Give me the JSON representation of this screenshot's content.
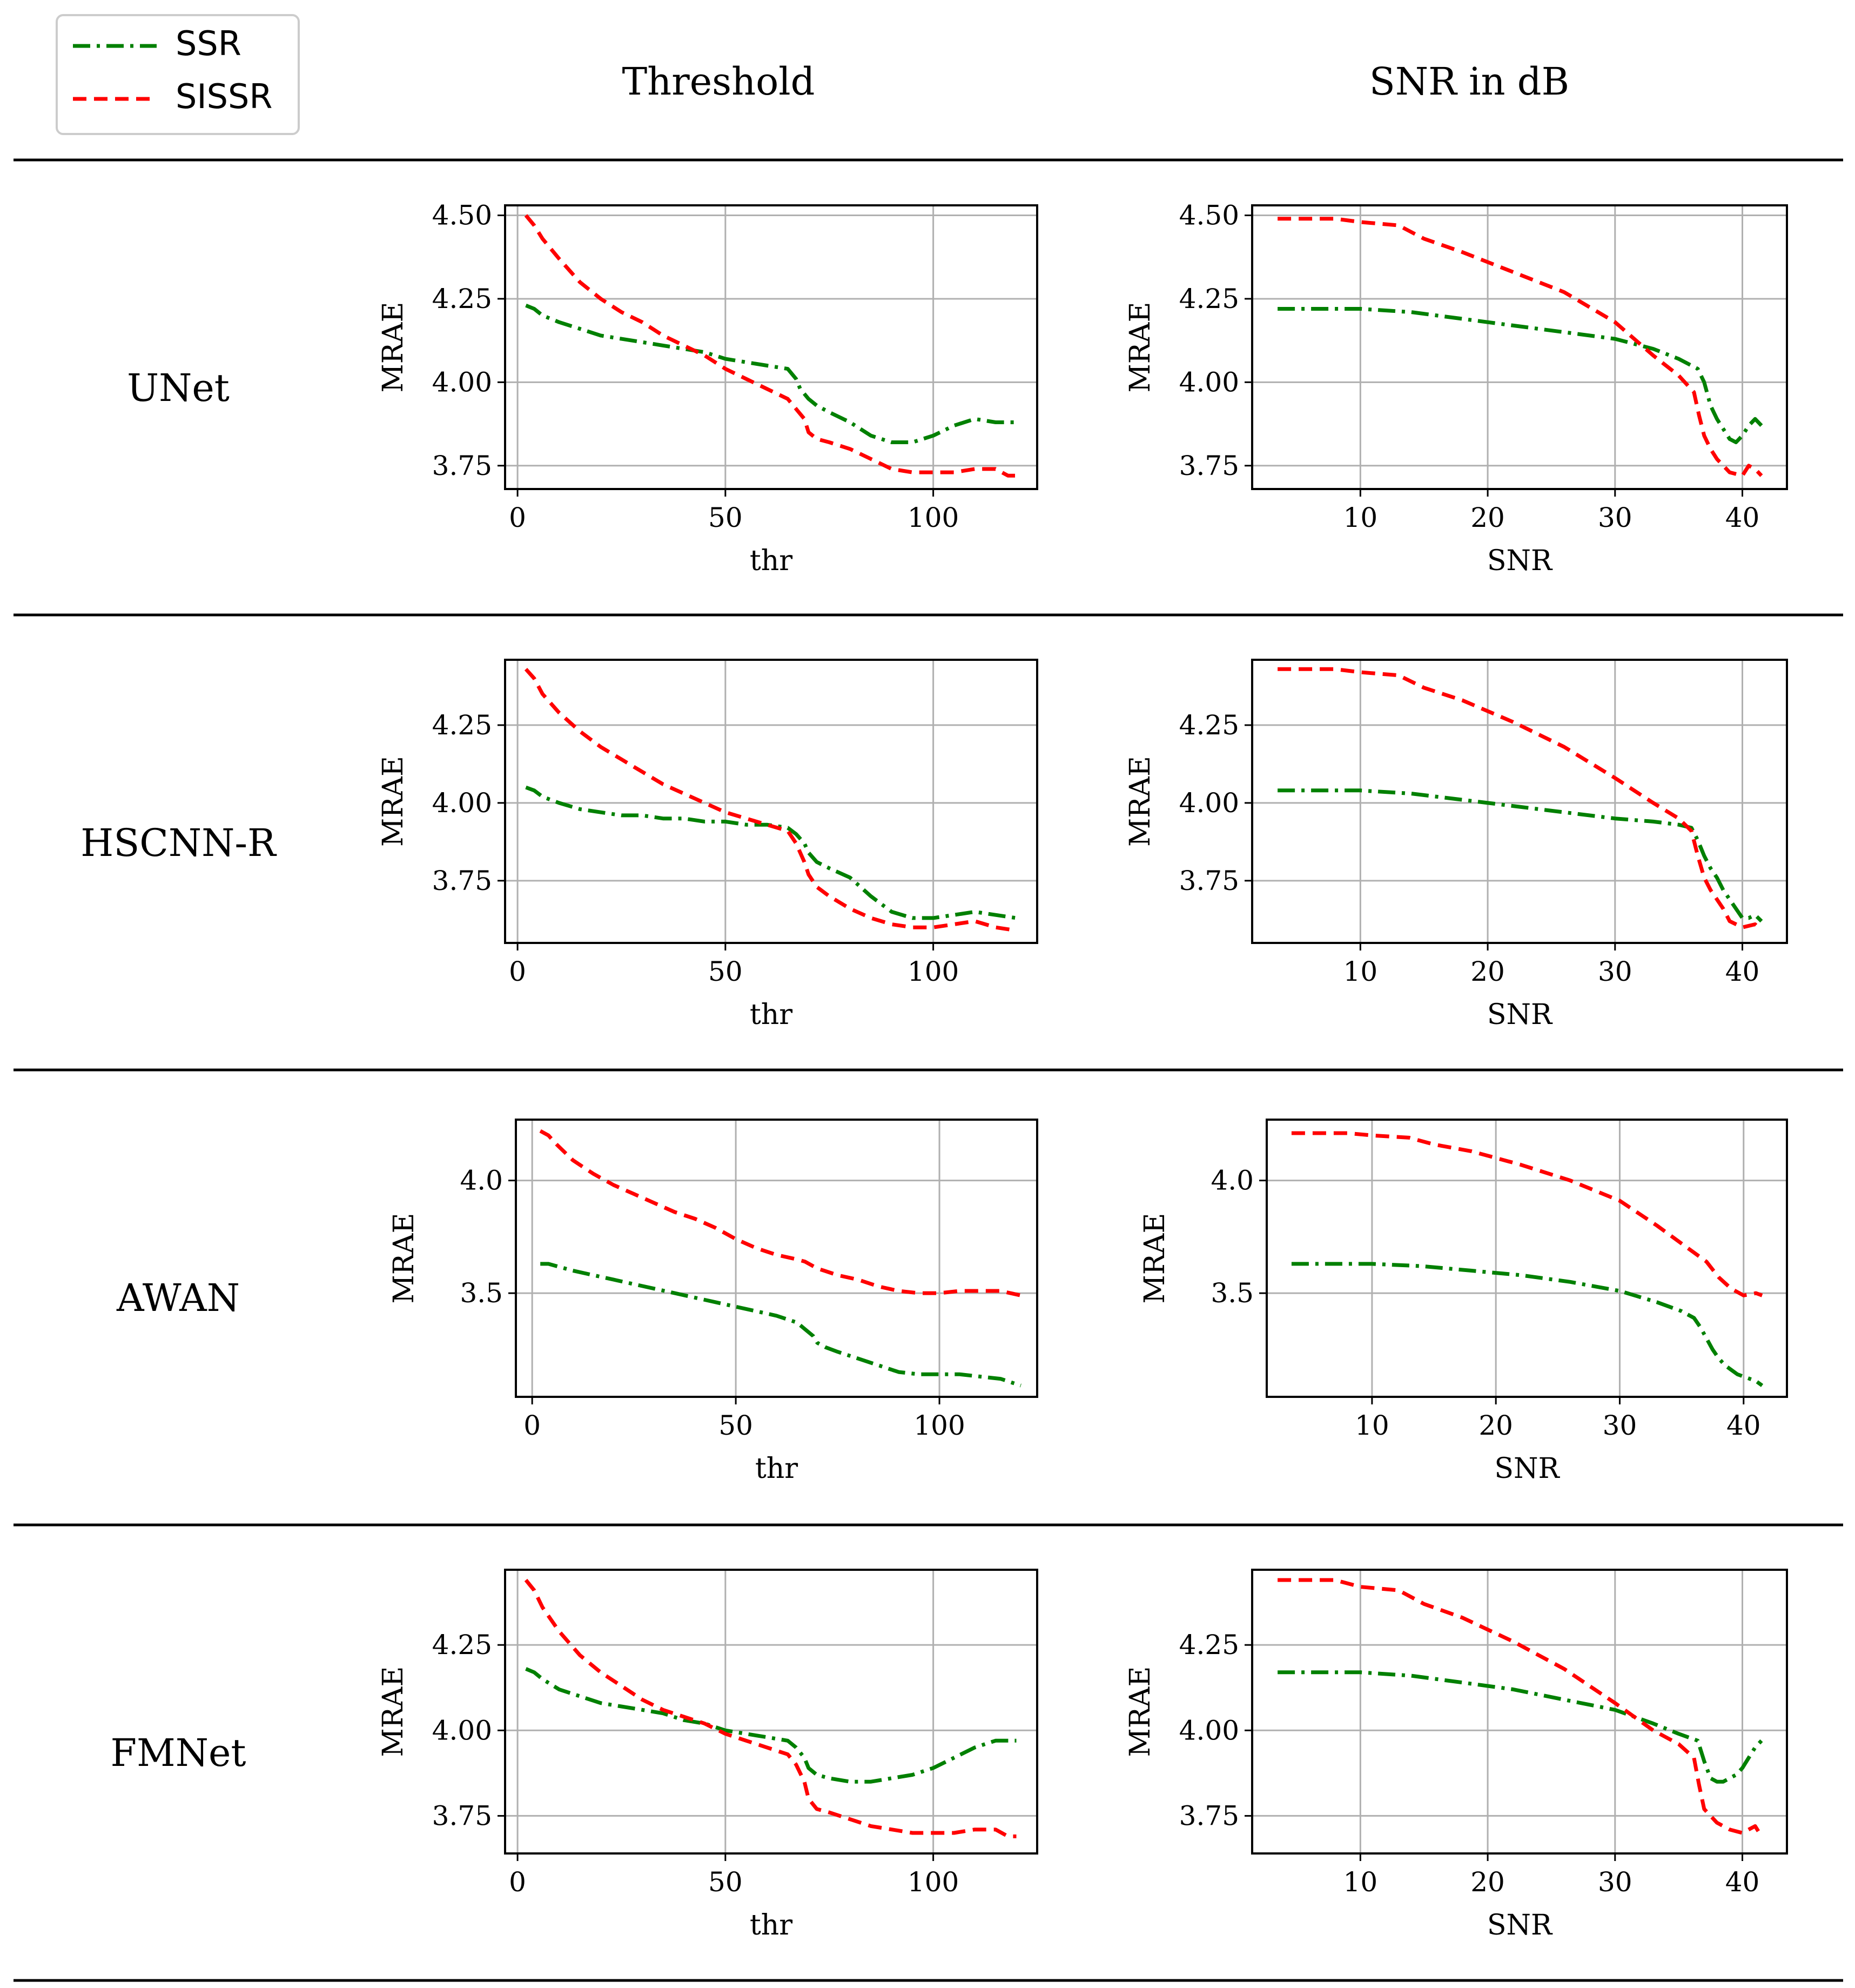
{
  "legend": [
    {
      "name": "SSR",
      "color": "#008000",
      "dash": "dashdot"
    },
    {
      "name": "SISSR",
      "color": "#ff0000",
      "dash": "dashed"
    }
  ],
  "columns": [
    "Threshold",
    "SNR in dB"
  ],
  "rows": [
    "UNet",
    "HSCNN-R",
    "AWAN",
    "FMNet"
  ],
  "chart_data": [
    {
      "id": "unet-thr",
      "type": "line",
      "row": "UNet",
      "column": "Threshold",
      "xlabel": "thr",
      "ylabel": "MRAE",
      "xlim": [
        -3,
        125
      ],
      "ylim": [
        3.68,
        4.53
      ],
      "xticks": [
        0,
        50,
        100
      ],
      "yticks": [
        3.75,
        4.0,
        4.25,
        4.5
      ],
      "ytick_decimals": 2,
      "grid": true,
      "series": [
        {
          "name": "SSR",
          "x": [
            2,
            4,
            6,
            10,
            15,
            20,
            25,
            30,
            35,
            40,
            45,
            50,
            55,
            60,
            65,
            67,
            68,
            70,
            72,
            75,
            80,
            85,
            90,
            95,
            100,
            105,
            110,
            115,
            120
          ],
          "y": [
            4.23,
            4.22,
            4.2,
            4.18,
            4.16,
            4.14,
            4.13,
            4.12,
            4.11,
            4.1,
            4.09,
            4.07,
            4.06,
            4.05,
            4.04,
            4.01,
            3.98,
            3.95,
            3.93,
            3.91,
            3.88,
            3.84,
            3.82,
            3.82,
            3.84,
            3.87,
            3.89,
            3.88,
            3.88
          ]
        },
        {
          "name": "SISSR",
          "x": [
            2,
            4,
            6,
            10,
            15,
            20,
            25,
            30,
            35,
            40,
            45,
            50,
            55,
            60,
            65,
            67,
            69,
            70,
            72,
            75,
            80,
            85,
            90,
            95,
            100,
            105,
            110,
            115,
            118,
            120
          ],
          "y": [
            4.5,
            4.47,
            4.43,
            4.37,
            4.3,
            4.25,
            4.21,
            4.18,
            4.14,
            4.11,
            4.08,
            4.04,
            4.01,
            3.98,
            3.95,
            3.92,
            3.89,
            3.85,
            3.83,
            3.82,
            3.8,
            3.77,
            3.74,
            3.73,
            3.73,
            3.73,
            3.74,
            3.74,
            3.72,
            3.72
          ]
        }
      ]
    },
    {
      "id": "unet-snr",
      "type": "line",
      "row": "UNet",
      "column": "SNR in dB",
      "xlabel": "SNR",
      "ylabel": "MRAE",
      "xlim": [
        1.5,
        43.5
      ],
      "ylim": [
        3.68,
        4.53
      ],
      "xticks": [
        10,
        20,
        30,
        40
      ],
      "yticks": [
        3.75,
        4.0,
        4.25,
        4.5
      ],
      "ytick_decimals": 2,
      "grid": true,
      "series": [
        {
          "name": "SSR",
          "x": [
            3.5,
            6,
            10,
            14,
            18,
            22,
            26,
            30,
            33,
            35,
            36.5,
            37,
            37.5,
            38,
            38.5,
            39,
            39.5,
            40,
            40.5,
            41,
            41.5
          ],
          "y": [
            4.22,
            4.22,
            4.22,
            4.21,
            4.19,
            4.17,
            4.15,
            4.13,
            4.1,
            4.07,
            4.04,
            4.0,
            3.93,
            3.89,
            3.86,
            3.83,
            3.82,
            3.84,
            3.87,
            3.89,
            3.87
          ]
        },
        {
          "name": "SISSR",
          "x": [
            3.5,
            5,
            8,
            10,
            13,
            15,
            18,
            22,
            26,
            30,
            33,
            35,
            36.2,
            36.6,
            37,
            37.5,
            38,
            39,
            40,
            40.5,
            41,
            41.5
          ],
          "y": [
            4.49,
            4.49,
            4.49,
            4.48,
            4.47,
            4.43,
            4.39,
            4.33,
            4.27,
            4.18,
            4.08,
            4.02,
            3.97,
            3.9,
            3.84,
            3.8,
            3.77,
            3.73,
            3.72,
            3.75,
            3.74,
            3.72
          ]
        }
      ]
    },
    {
      "id": "hscnn-thr",
      "type": "line",
      "row": "HSCNN-R",
      "column": "Threshold",
      "xlabel": "thr",
      "ylabel": "MRAE",
      "xlim": [
        -3,
        125
      ],
      "ylim": [
        3.55,
        4.46
      ],
      "xticks": [
        0,
        50,
        100
      ],
      "yticks": [
        3.75,
        4.0,
        4.25
      ],
      "ytick_decimals": 2,
      "grid": true,
      "series": [
        {
          "name": "SSR",
          "x": [
            2,
            4,
            6,
            10,
            15,
            20,
            25,
            30,
            35,
            40,
            45,
            50,
            55,
            60,
            65,
            67,
            69,
            70,
            72,
            75,
            80,
            85,
            90,
            95,
            100,
            105,
            110,
            115,
            120
          ],
          "y": [
            4.05,
            4.04,
            4.02,
            4.0,
            3.98,
            3.97,
            3.96,
            3.96,
            3.95,
            3.95,
            3.94,
            3.94,
            3.93,
            3.93,
            3.92,
            3.9,
            3.87,
            3.84,
            3.81,
            3.79,
            3.76,
            3.7,
            3.65,
            3.63,
            3.63,
            3.64,
            3.65,
            3.64,
            3.63
          ]
        },
        {
          "name": "SISSR",
          "x": [
            2,
            4,
            6,
            10,
            15,
            20,
            25,
            30,
            35,
            40,
            45,
            50,
            55,
            60,
            65,
            67,
            69,
            70,
            72,
            75,
            80,
            85,
            90,
            95,
            100,
            105,
            110,
            115,
            120
          ],
          "y": [
            4.43,
            4.4,
            4.35,
            4.29,
            4.23,
            4.18,
            4.14,
            4.1,
            4.06,
            4.03,
            4.0,
            3.97,
            3.95,
            3.93,
            3.91,
            3.87,
            3.81,
            3.77,
            3.73,
            3.7,
            3.66,
            3.63,
            3.61,
            3.6,
            3.6,
            3.61,
            3.62,
            3.6,
            3.59
          ]
        }
      ]
    },
    {
      "id": "hscnn-snr",
      "type": "line",
      "row": "HSCNN-R",
      "column": "SNR in dB",
      "xlabel": "SNR",
      "ylabel": "MRAE",
      "xlim": [
        1.5,
        43.5
      ],
      "ylim": [
        3.55,
        4.46
      ],
      "xticks": [
        10,
        20,
        30,
        40
      ],
      "yticks": [
        3.75,
        4.0,
        4.25
      ],
      "ytick_decimals": 2,
      "grid": true,
      "series": [
        {
          "name": "SSR",
          "x": [
            3.5,
            6,
            10,
            14,
            18,
            22,
            26,
            30,
            33,
            35,
            36,
            36.5,
            37,
            37.5,
            38,
            38.5,
            39,
            39.5,
            40,
            40.5,
            41,
            41.5
          ],
          "y": [
            4.04,
            4.04,
            4.04,
            4.03,
            4.01,
            3.99,
            3.97,
            3.95,
            3.94,
            3.93,
            3.92,
            3.88,
            3.83,
            3.79,
            3.76,
            3.72,
            3.69,
            3.66,
            3.63,
            3.63,
            3.64,
            3.62
          ]
        },
        {
          "name": "SISSR",
          "x": [
            3.5,
            5,
            8,
            10,
            13,
            15,
            18,
            22,
            26,
            30,
            33,
            35,
            36,
            36.5,
            37,
            37.5,
            38,
            38.5,
            39,
            40,
            41,
            41.5
          ],
          "y": [
            4.43,
            4.43,
            4.43,
            4.42,
            4.41,
            4.37,
            4.33,
            4.26,
            4.18,
            4.08,
            4.0,
            3.95,
            3.91,
            3.83,
            3.76,
            3.72,
            3.69,
            3.66,
            3.62,
            3.6,
            3.61,
            3.59
          ]
        }
      ]
    },
    {
      "id": "awan-thr",
      "type": "line",
      "row": "AWAN",
      "column": "Threshold",
      "xlabel": "thr",
      "ylabel": "MRAE",
      "xlim": [
        -4,
        124
      ],
      "ylim": [
        3.04,
        4.27
      ],
      "xticks": [
        0,
        50,
        100
      ],
      "yticks": [
        3.5,
        4.0
      ],
      "ytick_decimals": 1,
      "grid": true,
      "series": [
        {
          "name": "SSR",
          "x": [
            2,
            4,
            6,
            10,
            15,
            20,
            25,
            30,
            35,
            40,
            45,
            50,
            55,
            60,
            65,
            67,
            69,
            70,
            72,
            75,
            80,
            85,
            90,
            95,
            100,
            105,
            110,
            115,
            120
          ],
          "y": [
            3.63,
            3.63,
            3.62,
            3.6,
            3.58,
            3.56,
            3.54,
            3.52,
            3.5,
            3.48,
            3.46,
            3.44,
            3.42,
            3.4,
            3.37,
            3.34,
            3.31,
            3.28,
            3.26,
            3.24,
            3.21,
            3.18,
            3.15,
            3.14,
            3.14,
            3.14,
            3.13,
            3.12,
            3.09
          ]
        },
        {
          "name": "SISSR",
          "x": [
            2,
            4,
            6,
            10,
            15,
            20,
            25,
            30,
            35,
            40,
            45,
            50,
            55,
            60,
            65,
            67,
            70,
            75,
            80,
            85,
            90,
            95,
            100,
            105,
            110,
            115,
            120
          ],
          "y": [
            4.22,
            4.2,
            4.16,
            4.09,
            4.03,
            3.98,
            3.94,
            3.9,
            3.86,
            3.83,
            3.79,
            3.74,
            3.7,
            3.67,
            3.65,
            3.64,
            3.61,
            3.58,
            3.56,
            3.53,
            3.51,
            3.5,
            3.5,
            3.51,
            3.51,
            3.51,
            3.49
          ]
        }
      ]
    },
    {
      "id": "awan-snr",
      "type": "line",
      "row": "AWAN",
      "column": "SNR in dB",
      "xlabel": "SNR",
      "ylabel": "MRAE",
      "xlim": [
        1.5,
        43.5
      ],
      "ylim": [
        3.04,
        4.27
      ],
      "xticks": [
        10,
        20,
        30,
        40
      ],
      "yticks": [
        3.5,
        4.0
      ],
      "ytick_decimals": 1,
      "grid": true,
      "series": [
        {
          "name": "SSR",
          "x": [
            3.5,
            6,
            10,
            14,
            18,
            22,
            26,
            30,
            33,
            35,
            36,
            36.5,
            37,
            37.5,
            38,
            38.5,
            39,
            39.5,
            40,
            41,
            41.5
          ],
          "y": [
            3.63,
            3.63,
            3.63,
            3.62,
            3.6,
            3.58,
            3.55,
            3.51,
            3.46,
            3.42,
            3.39,
            3.35,
            3.3,
            3.25,
            3.21,
            3.18,
            3.16,
            3.14,
            3.13,
            3.11,
            3.09
          ]
        },
        {
          "name": "SISSR",
          "x": [
            3.5,
            5,
            8,
            10,
            13,
            15,
            18,
            22,
            26,
            30,
            33,
            35,
            36,
            37,
            38,
            39,
            40,
            41,
            41.5
          ],
          "y": [
            4.21,
            4.21,
            4.21,
            4.2,
            4.19,
            4.16,
            4.13,
            4.07,
            4.0,
            3.91,
            3.8,
            3.72,
            3.68,
            3.64,
            3.57,
            3.52,
            3.49,
            3.5,
            3.49
          ]
        }
      ]
    },
    {
      "id": "fmnet-thr",
      "type": "line",
      "row": "FMNet",
      "column": "Threshold",
      "xlabel": "thr",
      "ylabel": "MRAE",
      "xlim": [
        -3,
        125
      ],
      "ylim": [
        3.64,
        4.47
      ],
      "xticks": [
        0,
        50,
        100
      ],
      "yticks": [
        3.75,
        4.0,
        4.25
      ],
      "ytick_decimals": 2,
      "grid": true,
      "series": [
        {
          "name": "SSR",
          "x": [
            2,
            4,
            6,
            10,
            15,
            20,
            25,
            30,
            35,
            40,
            45,
            50,
            55,
            60,
            65,
            67,
            69,
            70,
            72,
            75,
            80,
            85,
            90,
            95,
            100,
            105,
            110,
            115,
            120
          ],
          "y": [
            4.18,
            4.17,
            4.15,
            4.12,
            4.1,
            4.08,
            4.07,
            4.06,
            4.05,
            4.03,
            4.02,
            4.0,
            3.99,
            3.98,
            3.97,
            3.95,
            3.92,
            3.89,
            3.87,
            3.86,
            3.85,
            3.85,
            3.86,
            3.87,
            3.89,
            3.92,
            3.95,
            3.97,
            3.97
          ]
        },
        {
          "name": "SISSR",
          "x": [
            2,
            4,
            6,
            10,
            15,
            20,
            25,
            30,
            35,
            40,
            45,
            50,
            55,
            60,
            65,
            67,
            69,
            70,
            72,
            75,
            80,
            85,
            90,
            95,
            100,
            105,
            110,
            115,
            118,
            120
          ],
          "y": [
            4.44,
            4.41,
            4.36,
            4.29,
            4.22,
            4.17,
            4.13,
            4.09,
            4.06,
            4.04,
            4.02,
            3.99,
            3.97,
            3.95,
            3.93,
            3.9,
            3.85,
            3.8,
            3.77,
            3.76,
            3.74,
            3.72,
            3.71,
            3.7,
            3.7,
            3.7,
            3.71,
            3.71,
            3.69,
            3.69
          ]
        }
      ]
    },
    {
      "id": "fmnet-snr",
      "type": "line",
      "row": "FMNet",
      "column": "SNR in dB",
      "xlabel": "SNR",
      "ylabel": "MRAE",
      "xlim": [
        1.5,
        43.5
      ],
      "ylim": [
        3.64,
        4.47
      ],
      "xticks": [
        10,
        20,
        30,
        40
      ],
      "yticks": [
        3.75,
        4.0,
        4.25
      ],
      "ytick_decimals": 2,
      "grid": true,
      "series": [
        {
          "name": "SSR",
          "x": [
            3.5,
            6,
            10,
            14,
            18,
            22,
            26,
            30,
            33,
            35,
            36.5,
            37,
            37.5,
            38,
            38.5,
            39,
            39.5,
            40,
            40.5,
            41,
            41.5
          ],
          "y": [
            4.17,
            4.17,
            4.17,
            4.16,
            4.14,
            4.12,
            4.09,
            4.06,
            4.02,
            3.99,
            3.97,
            3.91,
            3.86,
            3.85,
            3.85,
            3.86,
            3.87,
            3.89,
            3.92,
            3.95,
            3.97
          ]
        },
        {
          "name": "SISSR",
          "x": [
            3.5,
            5,
            8,
            10,
            13,
            15,
            18,
            22,
            26,
            30,
            33,
            35,
            36.2,
            36.6,
            37,
            37.5,
            38,
            39,
            40,
            40.5,
            41,
            41.5
          ],
          "y": [
            4.44,
            4.44,
            4.44,
            4.42,
            4.41,
            4.37,
            4.33,
            4.26,
            4.18,
            4.08,
            4.0,
            3.96,
            3.92,
            3.84,
            3.77,
            3.75,
            3.73,
            3.71,
            3.7,
            3.71,
            3.72,
            3.69
          ]
        }
      ]
    }
  ]
}
